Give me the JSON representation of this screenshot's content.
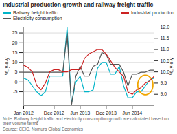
{
  "chart_data": {
    "type": "line",
    "title": "Industrial production growth and railway freight traffic",
    "x": [
      0,
      1,
      2,
      3,
      4,
      5,
      6,
      7,
      8,
      9,
      10,
      11,
      12,
      13,
      14,
      15,
      16,
      17,
      18,
      19,
      20,
      21,
      22,
      23,
      24,
      25,
      26,
      27,
      28,
      29,
      30
    ],
    "xlim": [
      0,
      30
    ],
    "xticks": [
      {
        "value": 0,
        "label": "Jan 2012"
      },
      {
        "value": 7,
        "label": "Dec 2012"
      },
      {
        "value": 13,
        "label": "Jun 2013"
      },
      {
        "value": 19,
        "label": "Dec 2013"
      },
      {
        "value": 25,
        "label": "Jun 2014"
      }
    ],
    "ylabel": "%, y-o-y",
    "y2label": "%, y-o-y",
    "ylim": [
      -12,
      28
    ],
    "yticks": [
      -5,
      0,
      5,
      10,
      15,
      20,
      25
    ],
    "y2lim": [
      8.5,
      12.0
    ],
    "y2ticks": [
      {
        "value": 9.0,
        "label": "9.0"
      },
      9.5,
      {
        "value": 10.0,
        "label": "10.0"
      },
      10.5,
      {
        "value": 11.0,
        "label": "11.0"
      },
      11.5,
      {
        "value": 12.0,
        "label": "12.0"
      }
    ],
    "grid": true,
    "legend": "top",
    "series": [
      {
        "name": "Railway freight traffic",
        "color": "#00b4c8",
        "values": [
          2,
          1,
          -2,
          -5,
          -7,
          -5,
          3,
          3,
          3,
          3,
          28,
          -11,
          0,
          3,
          -5,
          -5,
          -4,
          7,
          10,
          10,
          4,
          4,
          8,
          -2,
          -8,
          -8,
          -5,
          -5,
          -2,
          1,
          2
        ]
      },
      {
        "name": "Electricity consumption",
        "color": "#555555",
        "values": [
          5,
          5,
          5,
          5,
          5,
          5,
          5,
          5,
          5,
          5,
          25,
          -12,
          3,
          8,
          3,
          3,
          8,
          9,
          15,
          14,
          9,
          9,
          9,
          5,
          -2,
          4,
          4,
          5,
          5,
          6,
          6
        ]
      },
      {
        "name": "Industrial production",
        "color": "#cc2222",
        "axis": "y2",
        "values": [
          10.3,
          10.2,
          10.0,
          9.4,
          9.2,
          9.5,
          10.0,
          10.1,
          10.1,
          10.0,
          10.0,
          10.1,
          10.1,
          10.1,
          10.6,
          10.8,
          10.9,
          11.0,
          11.0,
          10.8,
          10.5,
          10.2,
          10.0,
          9.8,
          9.1,
          9.0,
          9.2,
          9.3,
          9.5,
          9.6,
          9.8
        ]
      }
    ],
    "annotations": [
      {
        "shape": "ellipse",
        "x": 28,
        "y": -1.5,
        "width": 3.5,
        "height": 10,
        "color": "#f0a500"
      }
    ],
    "note": "Note: Railway freight traffic and electricity consumption growth are calculated based on their volume terms",
    "source": "Source: CEIC, Nomura Global Economics"
  }
}
